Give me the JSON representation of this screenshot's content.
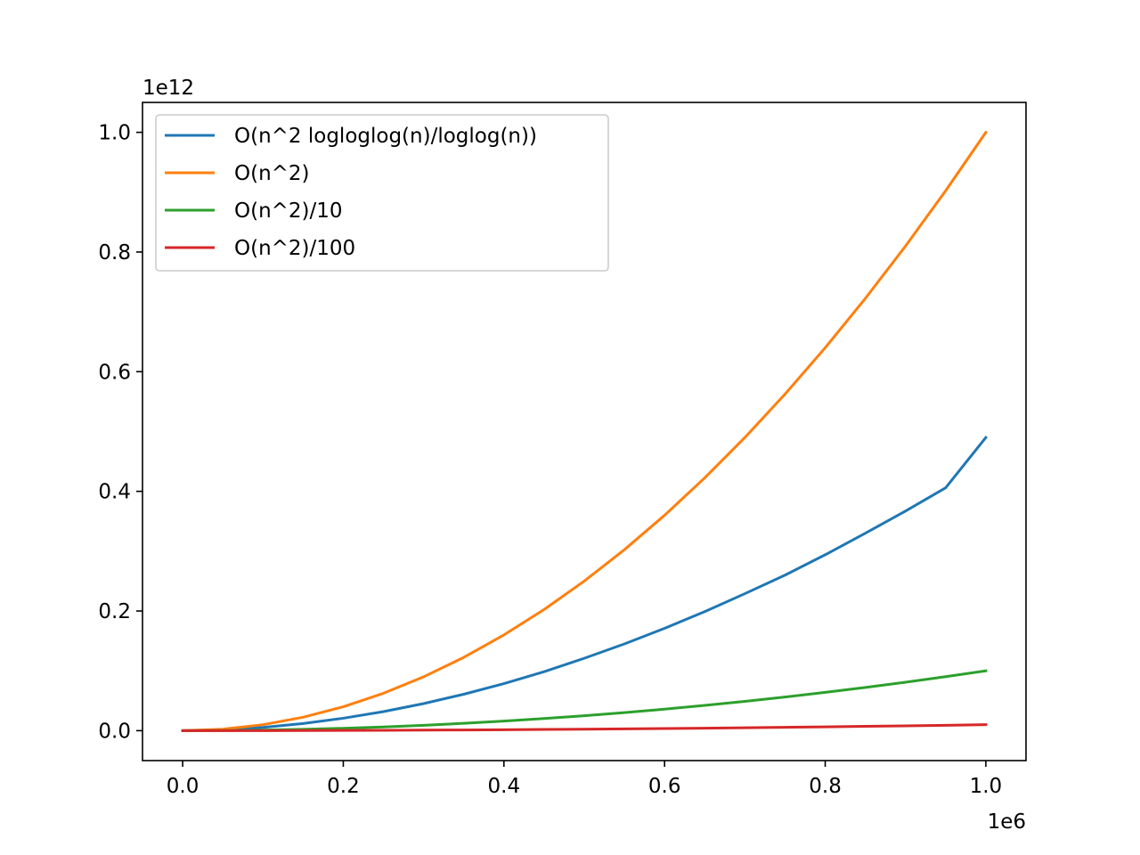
{
  "chart_data": {
    "type": "line",
    "title": "",
    "xlabel": "",
    "ylabel": "",
    "xlim": [
      -50000,
      1050000
    ],
    "ylim": [
      -50000000000,
      1050000000000
    ],
    "x_ticks": [
      0,
      200000,
      400000,
      600000,
      800000,
      1000000
    ],
    "x_tick_labels": [
      "0.0",
      "0.2",
      "0.4",
      "0.6",
      "0.8",
      "1.0"
    ],
    "x_offset_label": "1e6",
    "y_ticks": [
      0,
      200000000000,
      400000000000,
      600000000000,
      800000000000,
      1000000000000
    ],
    "y_tick_labels": [
      "0.0",
      "0.2",
      "0.4",
      "0.6",
      "0.8",
      "1.0"
    ],
    "y_offset_label": "1e12",
    "grid": false,
    "legend_position": "upper-left",
    "x": [
      0,
      50000,
      100000,
      150000,
      200000,
      250000,
      300000,
      350000,
      400000,
      450000,
      500000,
      550000,
      600000,
      650000,
      700000,
      750000,
      800000,
      850000,
      900000,
      950000,
      1000000
    ],
    "series": [
      {
        "name": "O(n^2 logloglog(n)/loglog(n))",
        "color": "#1f77b4",
        "values": [
          0,
          1440000000,
          5510000000,
          12000000000,
          20800000000,
          31900000000,
          45300000000,
          60900000000,
          78600000000,
          98600000000,
          121000000000,
          145000000000,
          171000000000,
          199000000000,
          229000000000,
          260000000000,
          294000000000,
          330000000000,
          367000000000,
          406000000000,
          490000000000
        ]
      },
      {
        "name": "O(n^2)",
        "color": "#ff7f0e",
        "values": [
          0,
          2500000000,
          10000000000,
          22500000000,
          40000000000,
          62500000000,
          90000000000,
          122500000000,
          160000000000,
          202500000000,
          250000000000,
          302500000000,
          360000000000,
          422500000000,
          490000000000,
          562500000000,
          640000000000,
          722500000000,
          810000000000,
          902500000000,
          1000000000000
        ]
      },
      {
        "name": "O(n^2)/10",
        "color": "#2ca02c",
        "values": [
          0,
          250000000,
          1000000000,
          2250000000,
          4000000000,
          6250000000,
          9000000000,
          12250000000,
          16000000000,
          20250000000,
          25000000000,
          30250000000,
          36000000000,
          42250000000,
          49000000000,
          56250000000,
          64000000000,
          72250000000,
          81000000000,
          90250000000,
          100000000000
        ]
      },
      {
        "name": "O(n^2)/100",
        "color": "#d62728",
        "values": [
          0,
          25000000,
          100000000,
          225000000,
          400000000,
          625000000,
          900000000,
          1225000000,
          1600000000,
          2025000000,
          2500000000,
          3025000000,
          3600000000,
          4225000000,
          4900000000,
          5625000000,
          6400000000,
          7225000000,
          8100000000,
          9025000000,
          10000000000
        ]
      }
    ]
  }
}
